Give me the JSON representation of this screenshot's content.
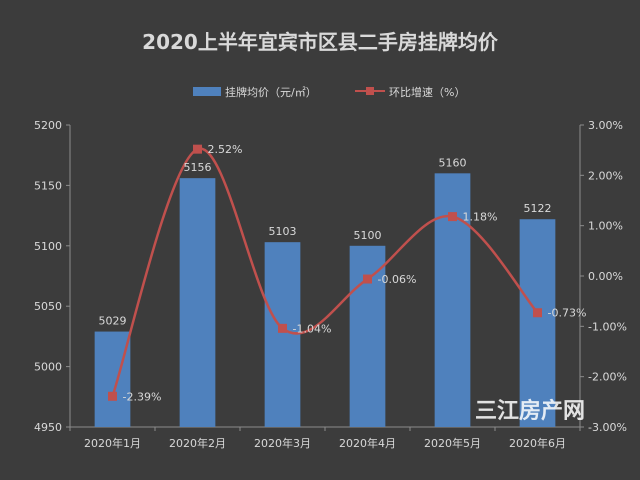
{
  "chart_data": {
    "type": "bar+line",
    "title": "2020上半年宜宾市区县二手房挂牌均价",
    "categories": [
      "2020年1月",
      "2020年2月",
      "2020年3月",
      "2020年4月",
      "2020年5月",
      "2020年6月"
    ],
    "series": [
      {
        "name": "挂牌均价（元/㎡）",
        "type": "bar",
        "axis": "left",
        "values": [
          5029,
          5156,
          5103,
          5100,
          5160,
          5122
        ],
        "labels": [
          "5029",
          "5156",
          "5103",
          "5100",
          "5160",
          "5122"
        ],
        "color": "#4f81bd"
      },
      {
        "name": "环比增速（%）",
        "type": "line",
        "axis": "right",
        "values": [
          -2.39,
          2.52,
          -1.04,
          -0.06,
          1.18,
          -0.73
        ],
        "labels": [
          "-2.39%",
          "2.52%",
          "-1.04%",
          "-0.06%",
          "1.18%",
          "-0.73%"
        ],
        "color": "#c0504d"
      }
    ],
    "y_left": {
      "min": 4950,
      "max": 5200,
      "ticks": [
        4950,
        5000,
        5050,
        5100,
        5150,
        5200
      ]
    },
    "y_right": {
      "min": -3,
      "max": 3,
      "ticks": [
        3,
        2,
        1,
        0,
        -1,
        -2,
        -3
      ],
      "tick_labels": [
        "3.00%",
        "2.00%",
        "1.00%",
        "0.00%",
        "-1.00%",
        "-2.00%",
        "-3.00%"
      ]
    },
    "grid": false,
    "legend_position": "top"
  },
  "watermark": "三江房产网"
}
